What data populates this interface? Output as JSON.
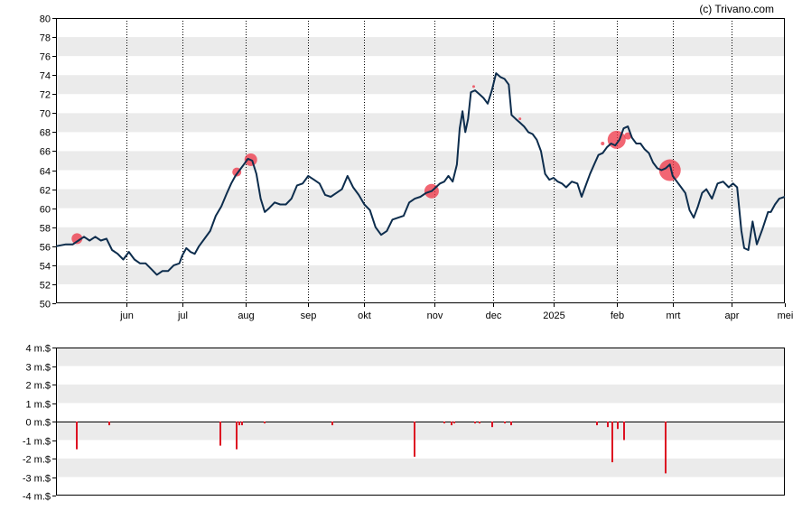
{
  "credit": "(c) Trivano.com",
  "colors": {
    "price_line": "#0d2d4d",
    "band": "#ebebeb",
    "marker": "#ee3344",
    "bar": "#dd1122"
  },
  "chart_data": [
    {
      "type": "line",
      "name": "price",
      "ylim": [
        50,
        80
      ],
      "yticks": [
        50,
        52,
        54,
        56,
        58,
        60,
        62,
        64,
        66,
        68,
        70,
        72,
        74,
        76,
        78,
        80
      ],
      "xlim": [
        0,
        52
      ],
      "month_ticks": [
        {
          "label": "jun",
          "x": 5
        },
        {
          "label": "jul",
          "x": 9
        },
        {
          "label": "aug",
          "x": 13.5
        },
        {
          "label": "sep",
          "x": 18
        },
        {
          "label": "okt",
          "x": 22
        },
        {
          "label": "nov",
          "x": 27
        },
        {
          "label": "dec",
          "x": 31.2
        },
        {
          "label": "2025",
          "x": 35.5
        },
        {
          "label": "feb",
          "x": 40
        },
        {
          "label": "mrt",
          "x": 44
        },
        {
          "label": "apr",
          "x": 48.2
        },
        {
          "label": "mei",
          "x": 52
        }
      ],
      "points": [
        [
          0,
          56.0
        ],
        [
          0.7,
          56.2
        ],
        [
          1.2,
          56.2
        ],
        [
          1.6,
          56.6
        ],
        [
          2.0,
          57.0
        ],
        [
          2.4,
          56.6
        ],
        [
          2.8,
          57.0
        ],
        [
          3.2,
          56.6
        ],
        [
          3.6,
          56.8
        ],
        [
          4.0,
          55.6
        ],
        [
          4.4,
          55.2
        ],
        [
          4.8,
          54.6
        ],
        [
          5.2,
          55.4
        ],
        [
          5.6,
          54.6
        ],
        [
          6.0,
          54.2
        ],
        [
          6.4,
          54.2
        ],
        [
          6.8,
          53.6
        ],
        [
          7.2,
          53.0
        ],
        [
          7.6,
          53.4
        ],
        [
          8.0,
          53.4
        ],
        [
          8.4,
          54.0
        ],
        [
          8.8,
          54.2
        ],
        [
          9.0,
          55.0
        ],
        [
          9.3,
          55.8
        ],
        [
          9.6,
          55.4
        ],
        [
          9.9,
          55.2
        ],
        [
          10.2,
          56.0
        ],
        [
          10.6,
          56.8
        ],
        [
          11.0,
          57.6
        ],
        [
          11.4,
          59.2
        ],
        [
          11.8,
          60.2
        ],
        [
          12.2,
          61.6
        ],
        [
          12.5,
          62.6
        ],
        [
          12.8,
          63.4
        ],
        [
          13.1,
          64.0
        ],
        [
          13.4,
          64.6
        ],
        [
          13.7,
          65.2
        ],
        [
          14.0,
          65.0
        ],
        [
          14.3,
          63.6
        ],
        [
          14.6,
          61.0
        ],
        [
          14.9,
          59.6
        ],
        [
          15.2,
          60.0
        ],
        [
          15.6,
          60.6
        ],
        [
          16.0,
          60.4
        ],
        [
          16.4,
          60.4
        ],
        [
          16.8,
          61.0
        ],
        [
          17.2,
          62.4
        ],
        [
          17.6,
          62.6
        ],
        [
          18.0,
          63.4
        ],
        [
          18.4,
          63.0
        ],
        [
          18.8,
          62.6
        ],
        [
          19.2,
          61.4
        ],
        [
          19.6,
          61.2
        ],
        [
          20.0,
          61.6
        ],
        [
          20.4,
          62.0
        ],
        [
          20.8,
          63.4
        ],
        [
          21.2,
          62.2
        ],
        [
          21.6,
          61.4
        ],
        [
          22.0,
          60.4
        ],
        [
          22.4,
          59.8
        ],
        [
          22.8,
          58.0
        ],
        [
          23.2,
          57.2
        ],
        [
          23.6,
          57.6
        ],
        [
          24.0,
          58.8
        ],
        [
          24.4,
          59.0
        ],
        [
          24.8,
          59.2
        ],
        [
          25.2,
          60.6
        ],
        [
          25.6,
          61.0
        ],
        [
          26.0,
          61.2
        ],
        [
          26.4,
          61.6
        ],
        [
          26.8,
          61.8
        ],
        [
          27.1,
          62.2
        ],
        [
          27.4,
          62.6
        ],
        [
          27.7,
          62.8
        ],
        [
          28.0,
          63.4
        ],
        [
          28.3,
          62.8
        ],
        [
          28.6,
          64.6
        ],
        [
          28.8,
          68.4
        ],
        [
          29.0,
          70.2
        ],
        [
          29.2,
          68.0
        ],
        [
          29.4,
          69.4
        ],
        [
          29.6,
          72.2
        ],
        [
          29.9,
          72.4
        ],
        [
          30.2,
          72.0
        ],
        [
          30.5,
          71.6
        ],
        [
          30.8,
          71.0
        ],
        [
          31.1,
          72.4
        ],
        [
          31.4,
          74.2
        ],
        [
          31.7,
          73.8
        ],
        [
          32.0,
          73.6
        ],
        [
          32.3,
          73.0
        ],
        [
          32.5,
          69.8
        ],
        [
          32.8,
          69.4
        ],
        [
          33.1,
          69.0
        ],
        [
          33.4,
          68.6
        ],
        [
          33.7,
          68.0
        ],
        [
          34.0,
          67.8
        ],
        [
          34.3,
          67.2
        ],
        [
          34.6,
          66.0
        ],
        [
          34.9,
          63.6
        ],
        [
          35.2,
          63.0
        ],
        [
          35.5,
          63.2
        ],
        [
          35.8,
          62.8
        ],
        [
          36.1,
          62.6
        ],
        [
          36.4,
          62.2
        ],
        [
          36.8,
          62.8
        ],
        [
          37.2,
          62.6
        ],
        [
          37.5,
          61.2
        ],
        [
          37.8,
          62.4
        ],
        [
          38.1,
          63.6
        ],
        [
          38.4,
          64.6
        ],
        [
          38.7,
          65.6
        ],
        [
          39.0,
          65.8
        ],
        [
          39.3,
          66.4
        ],
        [
          39.6,
          66.8
        ],
        [
          39.9,
          66.6
        ],
        [
          40.2,
          67.2
        ],
        [
          40.5,
          68.4
        ],
        [
          40.8,
          68.6
        ],
        [
          41.1,
          67.4
        ],
        [
          41.4,
          66.8
        ],
        [
          41.7,
          66.8
        ],
        [
          42.0,
          66.2
        ],
        [
          42.3,
          65.8
        ],
        [
          42.6,
          64.8
        ],
        [
          42.9,
          64.2
        ],
        [
          43.2,
          64.0
        ],
        [
          43.5,
          64.2
        ],
        [
          43.8,
          64.6
        ],
        [
          44.0,
          63.4
        ],
        [
          44.3,
          62.8
        ],
        [
          44.6,
          62.2
        ],
        [
          44.9,
          61.6
        ],
        [
          45.2,
          59.8
        ],
        [
          45.5,
          59.0
        ],
        [
          45.8,
          60.2
        ],
        [
          46.1,
          61.6
        ],
        [
          46.4,
          62.0
        ],
        [
          46.8,
          61.0
        ],
        [
          47.2,
          62.6
        ],
        [
          47.6,
          62.8
        ],
        [
          48.0,
          62.2
        ],
        [
          48.3,
          62.6
        ],
        [
          48.6,
          62.2
        ],
        [
          48.9,
          57.6
        ],
        [
          49.1,
          55.8
        ],
        [
          49.4,
          55.6
        ],
        [
          49.7,
          58.6
        ],
        [
          50.0,
          56.2
        ],
        [
          50.4,
          57.8
        ],
        [
          50.8,
          59.6
        ],
        [
          51.0,
          59.6
        ],
        [
          51.3,
          60.4
        ],
        [
          51.6,
          61.0
        ],
        [
          52,
          61.2
        ]
      ],
      "markers": [
        {
          "x": 1.5,
          "y": 56.8,
          "size": 6
        },
        {
          "x": 12.9,
          "y": 63.8,
          "size": 5
        },
        {
          "x": 13.9,
          "y": 65.1,
          "size": 7
        },
        {
          "x": 26.8,
          "y": 61.8,
          "size": 8
        },
        {
          "x": 40.0,
          "y": 67.2,
          "size": 10
        },
        {
          "x": 40.8,
          "y": 67.6,
          "size": 4
        },
        {
          "x": 39.0,
          "y": 66.8,
          "size": 2
        },
        {
          "x": 43.8,
          "y": 64.0,
          "size": 12
        },
        {
          "x": 29.8,
          "y": 72.8,
          "size": 1.5
        },
        {
          "x": 33.1,
          "y": 69.4,
          "size": 1.5
        }
      ]
    },
    {
      "type": "bar",
      "name": "volume",
      "ylim": [
        -4,
        4
      ],
      "ytick_labels": [
        "4 m.$",
        "3 m.$",
        "2 m.$",
        "1 m.$",
        "0 m.$",
        "-1 m.$",
        "-2 m.$",
        "-3 m.$",
        "-4 m.$"
      ],
      "yticks": [
        4,
        3,
        2,
        1,
        0,
        -1,
        -2,
        -3,
        -4
      ],
      "bars": [
        {
          "x": 1.5,
          "value": -1.5
        },
        {
          "x": 3.8,
          "value": -0.2
        },
        {
          "x": 11.7,
          "value": -1.3
        },
        {
          "x": 12.9,
          "value": -1.5
        },
        {
          "x": 13.1,
          "value": -0.2
        },
        {
          "x": 13.3,
          "value": -0.2
        },
        {
          "x": 14.9,
          "value": -0.1
        },
        {
          "x": 19.7,
          "value": -0.2
        },
        {
          "x": 25.6,
          "value": -1.9
        },
        {
          "x": 27.7,
          "value": -0.1
        },
        {
          "x": 28.2,
          "value": -0.2
        },
        {
          "x": 28.4,
          "value": -0.1
        },
        {
          "x": 29.9,
          "value": -0.1
        },
        {
          "x": 30.2,
          "value": -0.1
        },
        {
          "x": 31.1,
          "value": -0.3
        },
        {
          "x": 32.0,
          "value": -0.1
        },
        {
          "x": 32.5,
          "value": -0.2
        },
        {
          "x": 38.6,
          "value": -0.2
        },
        {
          "x": 39.4,
          "value": -0.3
        },
        {
          "x": 39.7,
          "value": -2.2
        },
        {
          "x": 40.1,
          "value": -0.4
        },
        {
          "x": 40.5,
          "value": -1.0
        },
        {
          "x": 43.5,
          "value": -2.8
        }
      ]
    }
  ]
}
